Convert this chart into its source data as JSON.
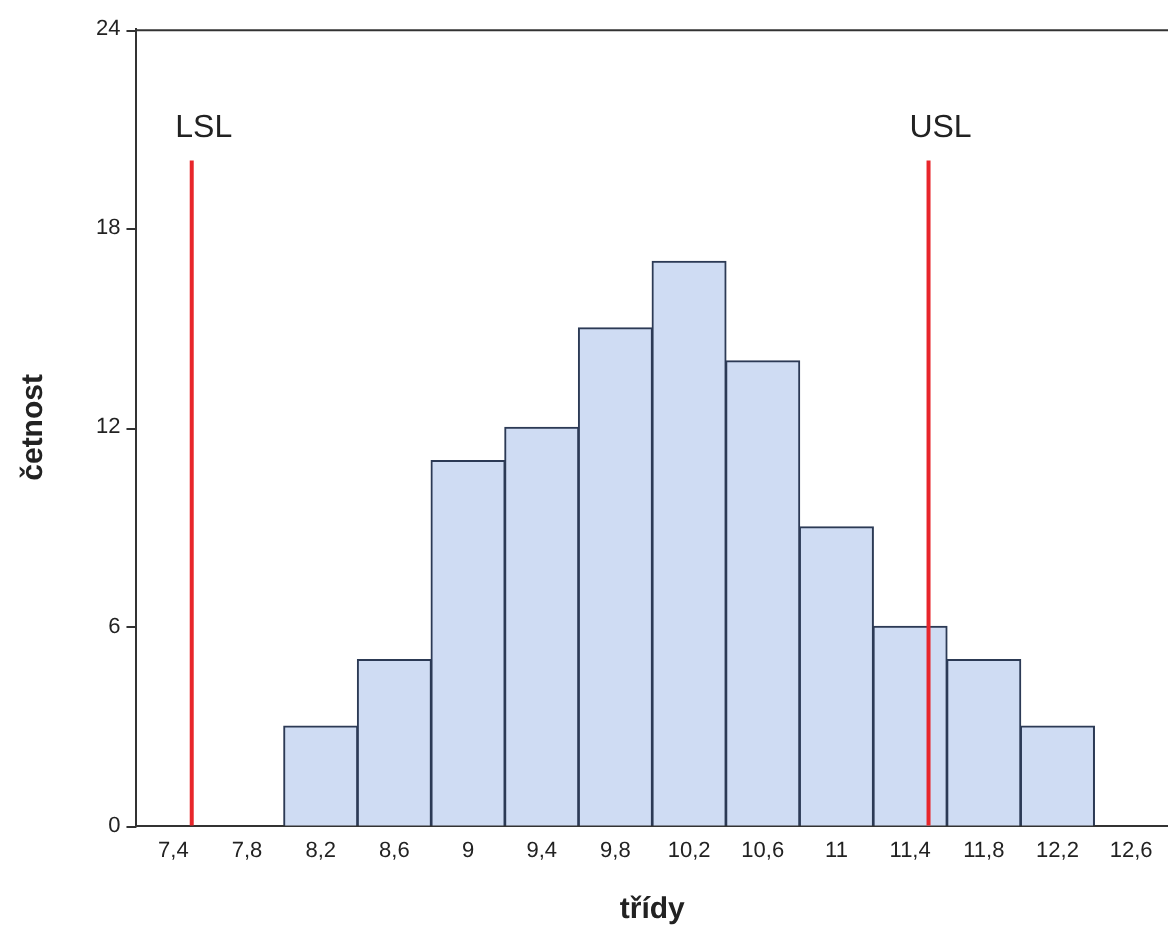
{
  "chart_data": {
    "type": "bar",
    "xlabel": "třídy",
    "ylabel": "četnost",
    "x": [
      7.4,
      7.8,
      8.2,
      8.6,
      9,
      9.4,
      9.8,
      10.2,
      10.6,
      11,
      11.4,
      11.8,
      12.2,
      12.6
    ],
    "values": [
      0,
      0,
      3,
      5,
      11,
      12,
      15,
      17,
      14,
      9,
      6,
      5,
      3,
      0
    ],
    "color": "#cfdcf3",
    "xlim": [
      7.2,
      12.8
    ],
    "xticks": [
      {
        "value": 7.4,
        "label": "7,4"
      },
      {
        "value": 7.8,
        "label": "7,8"
      },
      {
        "value": 8.2,
        "label": "8,2"
      },
      {
        "value": 8.6,
        "label": "8,6"
      },
      {
        "value": 9,
        "label": "9"
      },
      {
        "value": 9.4,
        "label": "9,4"
      },
      {
        "value": 9.8,
        "label": "9,8"
      },
      {
        "value": 10.2,
        "label": "10,2"
      },
      {
        "value": 10.6,
        "label": "10,6"
      },
      {
        "value": 11,
        "label": "11"
      },
      {
        "value": 11.4,
        "label": "11,4"
      },
      {
        "value": 11.8,
        "label": "11,8"
      },
      {
        "value": 12.2,
        "label": "12,2"
      },
      {
        "value": 12.6,
        "label": "12,6"
      }
    ],
    "ylim": [
      0,
      24
    ],
    "yticks": [
      0,
      6,
      12,
      18,
      24
    ],
    "grid": false,
    "legend": false,
    "ref_lines": [
      {
        "axis": "x",
        "value": 7.5,
        "label": "LSL",
        "color": "#e8262b"
      },
      {
        "axis": "x",
        "value": 11.5,
        "label": "USL",
        "color": "#e8262b"
      }
    ]
  }
}
